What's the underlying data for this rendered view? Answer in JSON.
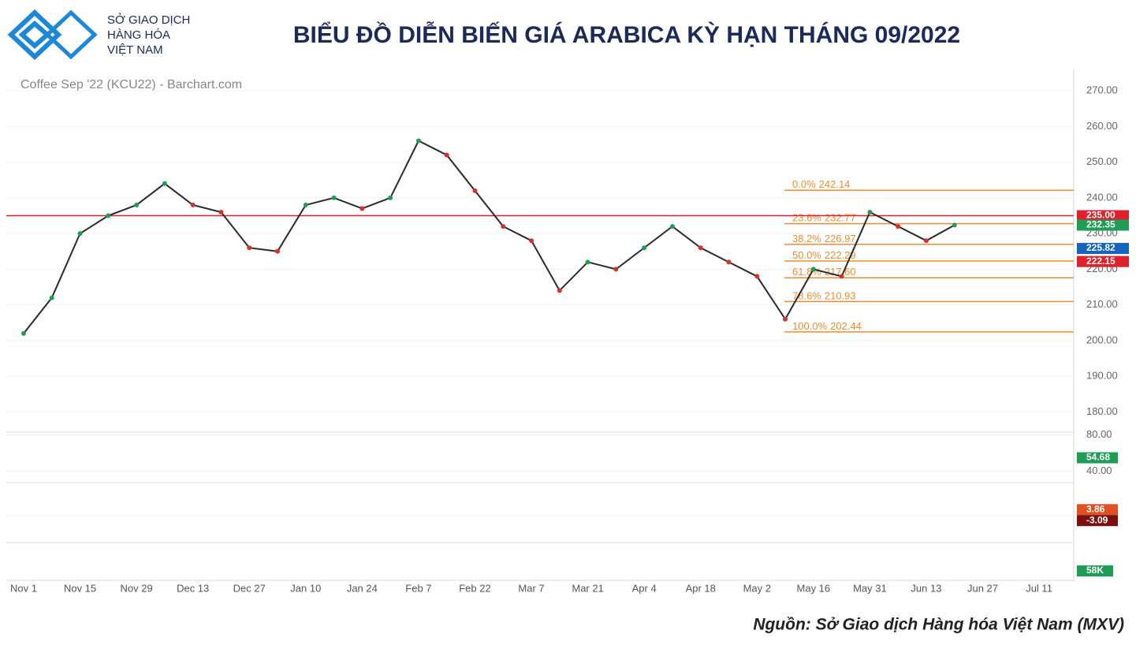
{
  "header": {
    "logo_lines": [
      "SỞ GIAO DỊCH",
      "HÀNG HÓA",
      "VIỆT NAM"
    ],
    "title": "BIỂU ĐỒ DIỄN BIẾN GIÁ ARABICA KỲ HẠN THÁNG 09/2022"
  },
  "chart_data": {
    "type": "line",
    "subtitle": "Coffee Sep '22 (KCU22) - Barchart.com",
    "categories": [
      "Nov 1",
      null,
      "Nov 15",
      null,
      "Nov 29",
      null,
      "Dec 13",
      null,
      "Dec 27",
      null,
      "Jan 10",
      null,
      "Jan 24",
      null,
      "Feb 7",
      null,
      "Feb 22",
      null,
      "Mar 7",
      null,
      "Mar 21",
      null,
      "Apr 4",
      null,
      "Apr 18",
      null,
      "May 2",
      null,
      "May 16",
      null,
      "May 31",
      null,
      "Jun 13",
      null,
      "Jun 27",
      null,
      "Jul 11"
    ],
    "values": [
      202,
      212,
      230,
      235,
      238,
      244,
      238,
      236,
      226,
      225,
      238,
      240,
      237,
      240,
      256,
      252,
      242,
      232,
      228,
      214,
      222,
      220,
      226,
      232,
      226,
      222,
      218,
      206,
      220,
      218,
      236,
      232,
      228,
      232.35,
      null,
      null,
      null
    ],
    "color": "#2a2a2a",
    "ylim": [
      175,
      276
    ],
    "yticks": [
      {
        "value": 180,
        "label": "180.00"
      },
      {
        "value": 190,
        "label": "190.00"
      },
      {
        "value": 200,
        "label": "200.00"
      },
      {
        "value": 210,
        "label": "210.00"
      },
      {
        "value": 220,
        "label": "220.00"
      },
      {
        "value": 230,
        "label": "230.00"
      },
      {
        "value": 240,
        "label": "240.00"
      },
      {
        "value": 250,
        "label": "250.00"
      },
      {
        "value": 260,
        "label": "260.00"
      },
      {
        "value": 270,
        "label": "270.00"
      }
    ],
    "grid": true,
    "reference_line": {
      "value": 235,
      "color": "#e0202a"
    },
    "fibonacci": {
      "color": "#f08c30",
      "levels": [
        {
          "level": "0.0%",
          "value": 242.14
        },
        {
          "level": "23.6%",
          "value": 232.77
        },
        {
          "level": "38.2%",
          "value": 226.97
        },
        {
          "level": "50.0%",
          "value": 222.29
        },
        {
          "level": "61.8%",
          "value": {
            "value": 217.6,
            "label": "217.60"
          }
        },
        {
          "level": "78.6%",
          "value": 210.93
        },
        {
          "level": "100.0%",
          "value": 202.44
        }
      ]
    },
    "price_labels": [
      {
        "value": 235,
        "label": "235.00",
        "color": "#e0202a"
      },
      {
        "value": 232.35,
        "label": "232.35",
        "color": "#1f9d55"
      },
      {
        "value": 225.82,
        "label": "225.82",
        "color": "#1565c0"
      },
      {
        "value": 222.15,
        "label": "222.15",
        "color": "#e0202a"
      }
    ],
    "rsi": {
      "ylim": [
        29,
        83
      ],
      "yticks": [
        {
          "value": 80,
          "label": "80.00"
        },
        {
          "value": 40,
          "label": "40.00"
        }
      ],
      "last": 54.68,
      "color": "#1f9d55"
    },
    "macd": {
      "ylim": [
        -17,
        18
      ],
      "labels": [
        {
          "value": 3.86,
          "color": "#e05020"
        },
        {
          "value": -3.09,
          "color": "#7a1010"
        }
      ]
    },
    "volume": {
      "last": {
        "value": 58000,
        "label": "58K"
      },
      "color": "#1f9d55"
    }
  },
  "source": "Nguồn: Sở Giao dịch Hàng hóa Việt Nam (MXV)"
}
